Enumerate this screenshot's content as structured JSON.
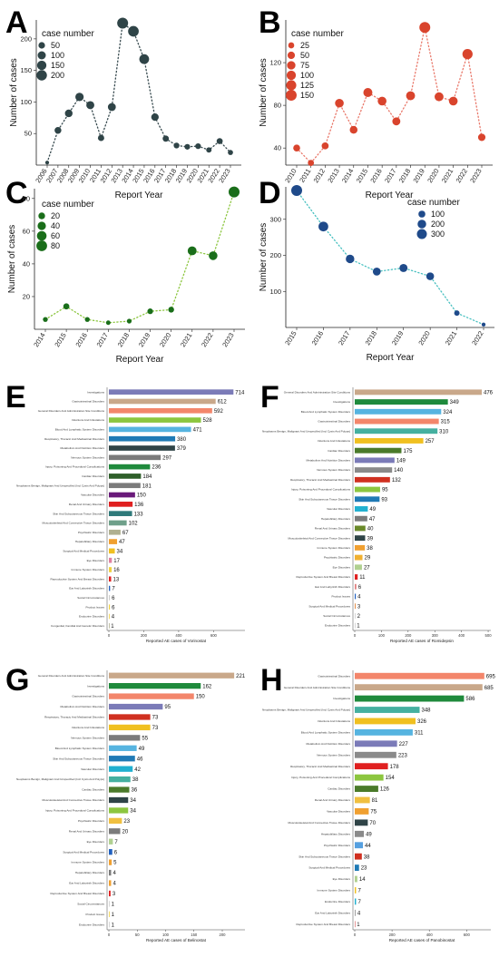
{
  "chart_data": [
    {
      "panel": "A",
      "type": "scatter",
      "connected": true,
      "line_color": "#374a4f",
      "point_color": "#2f4447",
      "xlabel": "Report Year",
      "ylabel": "Number of cases",
      "legend_title": "case number",
      "legend_values": [
        "50",
        "100",
        "150",
        "200"
      ],
      "legend_position": "top-left",
      "x": [
        "2006",
        "2007",
        "2008",
        "2009",
        "2010",
        "2011",
        "2012",
        "2013",
        "2014",
        "2015",
        "2016",
        "2017",
        "2018",
        "2019",
        "2020",
        "2021",
        "2022",
        "2023"
      ],
      "values": [
        4,
        55,
        82,
        108,
        95,
        43,
        92,
        225,
        212,
        168,
        76,
        42,
        31,
        29,
        30,
        24,
        38,
        20
      ],
      "ylim": [
        0,
        230
      ],
      "yticks": [
        "50",
        "100",
        "150",
        "200"
      ]
    },
    {
      "panel": "B",
      "type": "scatter",
      "connected": true,
      "line_color": "#e9786a",
      "point_color": "#d9442d",
      "xlabel": "Report Year",
      "ylabel": "Number of cases",
      "legend_title": "case number",
      "legend_values": [
        "25",
        "50",
        "75",
        "100",
        "125",
        "150"
      ],
      "legend_position": "top-left",
      "x": [
        "2010",
        "2011",
        "2012",
        "2013",
        "2014",
        "2015",
        "2016",
        "2017",
        "2018",
        "2019",
        "2020",
        "2021",
        "2022",
        "2023"
      ],
      "values": [
        40,
        26,
        42,
        82,
        57,
        92,
        84,
        65,
        89,
        153,
        88,
        84,
        128,
        50
      ],
      "ylim": [
        24,
        160
      ],
      "yticks": [
        "40",
        "80",
        "120"
      ]
    },
    {
      "panel": "C",
      "type": "scatter",
      "connected": true,
      "line_color": "#8cc63f",
      "point_color": "#1a6e1a",
      "xlabel": "Report Year",
      "ylabel": "Number of cases",
      "legend_title": "case number",
      "legend_values": [
        "20",
        "40",
        "60",
        "80"
      ],
      "legend_position": "top-left",
      "x": [
        "2014",
        "2015",
        "2016",
        "2017",
        "2018",
        "2019",
        "2020",
        "2021",
        "2022",
        "2023"
      ],
      "values": [
        6,
        14,
        6,
        4,
        5,
        11,
        12,
        48,
        45,
        84
      ],
      "ylim": [
        0,
        86
      ],
      "yticks": [
        "20",
        "40",
        "60",
        "80"
      ]
    },
    {
      "panel": "D",
      "type": "scatter",
      "connected": true,
      "line_color": "#48c0c0",
      "point_color": "#1f4a8a",
      "xlabel": "Report Year",
      "ylabel": "Number of cases",
      "legend_title": "case number",
      "legend_values": [
        "100",
        "200",
        "300"
      ],
      "legend_position": "top-right",
      "x": [
        "2015",
        "2016",
        "2017",
        "2018",
        "2019",
        "2020",
        "2021",
        "2022"
      ],
      "values": [
        380,
        280,
        190,
        155,
        165,
        142,
        40,
        8
      ],
      "ylim": [
        0,
        390
      ],
      "yticks": [
        "100",
        "200",
        "300"
      ]
    },
    {
      "panel": "E",
      "type": "bar",
      "orientation": "horizontal",
      "xlabel": "Reported AE cases of Vorinostat",
      "xlim": [
        0,
        780
      ],
      "xticks": [
        "0",
        "200",
        "400",
        "600"
      ],
      "categories": [
        "Investigations",
        "Gastrointestinal Disorders",
        "General Disorders And Administration Site Conditions",
        "Infections And Infestations",
        "Blood And Lymphatic System Disorders",
        "Respiratory, Thoracic And Mediastinal Disorders",
        "Metabolism And Nutrition Disorders",
        "Nervous System Disorders",
        "Injury, Poisoning And Procedural Complications",
        "Cardiac Disorders",
        "Neoplasms Benign, Malignant And Unspecified (Incl Cysts And Polyps)",
        "Vascular Disorders",
        "Renal And Urinary Disorders",
        "Skin And Subcutaneous Tissue Disorders",
        "Musculoskeletal And Connective Tissue Disorders",
        "Psychiatric Disorders",
        "Hepatobiliary Disorders",
        "Surgical And Medical Procedures",
        "Eye Disorders",
        "Immune System Disorders",
        "Reproductive System And Breast Disorders",
        "Ear And Labyrinth Disorders",
        "Social Circumstances",
        "Product Issues",
        "Endocrine Disorders",
        "Congenital, Familial And Genetic Disorders"
      ],
      "values": [
        714,
        612,
        592,
        528,
        471,
        380,
        379,
        297,
        236,
        184,
        181,
        150,
        136,
        133,
        102,
        67,
        47,
        34,
        17,
        16,
        13,
        7,
        6,
        6,
        4,
        1
      ],
      "colors": [
        "#7b7bb8",
        "#c9a88a",
        "#f3866b",
        "#8cc63f",
        "#56b4e0",
        "#1f7ab5",
        "#2f4447",
        "#7b7b7b",
        "#1f8a3c",
        "#2f5f2a",
        "#7b7b7b",
        "#6a1a7a",
        "#e02020",
        "#2f7a7a",
        "#6fa08a",
        "#b0b090",
        "#f0a030",
        "#f0c020",
        "#e080a0",
        "#f0d040",
        "#e02020",
        "#2060c0",
        "#cccccc",
        "#f0d040",
        "#f0d040",
        "#b0b090"
      ]
    },
    {
      "panel": "F",
      "type": "bar",
      "orientation": "horizontal",
      "xlabel": "Reported AE cases of Romidepsin",
      "xlim": [
        0,
        510
      ],
      "xticks": [
        "0",
        "100",
        "200",
        "300",
        "400",
        "500"
      ],
      "categories": [
        "General Disorders And Administration Site Conditions",
        "Investigations",
        "Blood And Lymphatic System Disorders",
        "Gastrointestinal Disorders",
        "Neoplasms Benign, Malignant And Unspecified (Incl Cysts And Polyps)",
        "Infections And Infestations",
        "Cardiac Disorders",
        "Metabolism And Nutrition Disorders",
        "Nervous System Disorders",
        "Respiratory, Thoracic And Mediastinal Disorders",
        "Injury, Poisoning And Procedural Complications",
        "Skin And Subcutaneous Tissue Disorders",
        "Vascular Disorders",
        "Hepatobiliary Disorders",
        "Renal And Urinary Disorders",
        "Musculoskeletal And Connective Tissue Disorders",
        "Immune System Disorders",
        "Psychiatric Disorders",
        "Eye Disorders",
        "Reproductive System And Breast Disorders",
        "Ear And Labyrinth Disorders",
        "Product Issues",
        "Surgical And Medical Procedures",
        "Social Circumstances",
        "Endocrine Disorders"
      ],
      "values": [
        476,
        349,
        324,
        315,
        310,
        257,
        175,
        149,
        140,
        132,
        95,
        93,
        49,
        47,
        40,
        39,
        38,
        29,
        27,
        11,
        6,
        4,
        3,
        2,
        1
      ],
      "colors": [
        "#c9a88a",
        "#1f8a3c",
        "#56b4e0",
        "#f3866b",
        "#45b0a0",
        "#f0c020",
        "#4a7a2a",
        "#7b7bb8",
        "#8a8a8a",
        "#d03020",
        "#8cc63f",
        "#1f7ab5",
        "#20b0d0",
        "#7b7b7b",
        "#6a8a2a",
        "#2f4447",
        "#f0a030",
        "#f0b030",
        "#b0d090",
        "#e02020",
        "#e08080",
        "#2060c0",
        "#e08030",
        "#cccccc",
        "#cccccc"
      ]
    },
    {
      "panel": "G",
      "type": "bar",
      "orientation": "horizontal",
      "xlabel": "Reported AE cases of Belinostat",
      "xlim": [
        0,
        240
      ],
      "xticks": [
        "0",
        "50",
        "100",
        "150",
        "200"
      ],
      "categories": [
        "General Disorders And Administration Site Conditions",
        "Investigations",
        "Gastrointestinal Disorders",
        "Metabolism And Nutrition Disorders",
        "Respiratory, Thoracic And Mediastinal Disorders",
        "Infections And Infestations",
        "Nervous System Disorders",
        "Blood And Lymphatic System Disorders",
        "Skin And Subcutaneous Tissue Disorders",
        "Vascular Disorders",
        "Neoplasms Benign, Malignant And Unspecified (Incl Cysts And Polyps)",
        "Cardiac Disorders",
        "Musculoskeletal And Connective Tissue Disorders",
        "Injury, Poisoning And Procedural Complications",
        "Psychiatric Disorders",
        "Renal And Urinary Disorders",
        "Eye Disorders",
        "Surgical And Medical Procedures",
        "Immune System Disorders",
        "Hepatobiliary Disorders",
        "Ear And Labyrinth Disorders",
        "Reproductive System And Breast Disorders",
        "Social Circumstances",
        "Product Issues",
        "Endocrine Disorders"
      ],
      "values": [
        221,
        162,
        150,
        95,
        73,
        73,
        55,
        49,
        46,
        42,
        38,
        36,
        34,
        34,
        23,
        20,
        7,
        6,
        5,
        4,
        4,
        3,
        1,
        1,
        1
      ],
      "colors": [
        "#c9a88a",
        "#1f8a3c",
        "#f3866b",
        "#7b7bb8",
        "#d03020",
        "#f0c020",
        "#7b7b7b",
        "#56b4e0",
        "#1f7ab5",
        "#20b0d0",
        "#45b0a0",
        "#4a7a2a",
        "#2f4447",
        "#8cc63f",
        "#f0c040",
        "#7b7b7b",
        "#b0d090",
        "#2060c0",
        "#f0a030",
        "#7b7b7b",
        "#f0a030",
        "#e02020",
        "#cccccc",
        "#f0d040",
        "#cccccc"
      ]
    },
    {
      "panel": "H",
      "type": "bar",
      "orientation": "horizontal",
      "xlabel": "Reported AE cases of Panobinostat",
      "xlim": [
        0,
        730
      ],
      "xticks": [
        "0",
        "200",
        "400",
        "600"
      ],
      "categories": [
        "Gastrointestinal Disorders",
        "General Disorders And Administration Site Conditions",
        "Investigations",
        "Neoplasms Benign, Malignant And Unspecified (Incl Cysts And Polyps)",
        "Infections And Infestations",
        "Blood And Lymphatic System Disorders",
        "Metabolism And Nutrition Disorders",
        "Nervous System Disorders",
        "Respiratory, Thoracic And Mediastinal Disorders",
        "Injury, Poisoning And Procedural Complications",
        "Cardiac Disorders",
        "Renal And Urinary Disorders",
        "Vascular Disorders",
        "Musculoskeletal And Connective Tissue Disorders",
        "Hepatobiliary Disorders",
        "Psychiatric Disorders",
        "Skin And Subcutaneous Tissue Disorders",
        "Surgical And Medical Procedures",
        "Eye Disorders",
        "Immune System Disorders",
        "Endocrine Disorders",
        "Ear And Labyrinth Disorders",
        "Reproductive System And Breast Disorders"
      ],
      "values": [
        695,
        685,
        586,
        348,
        326,
        311,
        227,
        223,
        178,
        154,
        126,
        81,
        75,
        70,
        49,
        44,
        38,
        23,
        14,
        7,
        7,
        4,
        1
      ],
      "colors": [
        "#f3866b",
        "#c9a88a",
        "#1f8a3c",
        "#45b0a0",
        "#f0c020",
        "#56b4e0",
        "#7b7bb8",
        "#8a8a8a",
        "#e02020",
        "#8cc63f",
        "#4a7a2a",
        "#f0c040",
        "#f0a030",
        "#2f4447",
        "#8a8a8a",
        "#56a0e0",
        "#d03020",
        "#1f7ab5",
        "#b0d090",
        "#f0c020",
        "#20b0d0",
        "#8a8a8a",
        "#e08080"
      ]
    }
  ]
}
